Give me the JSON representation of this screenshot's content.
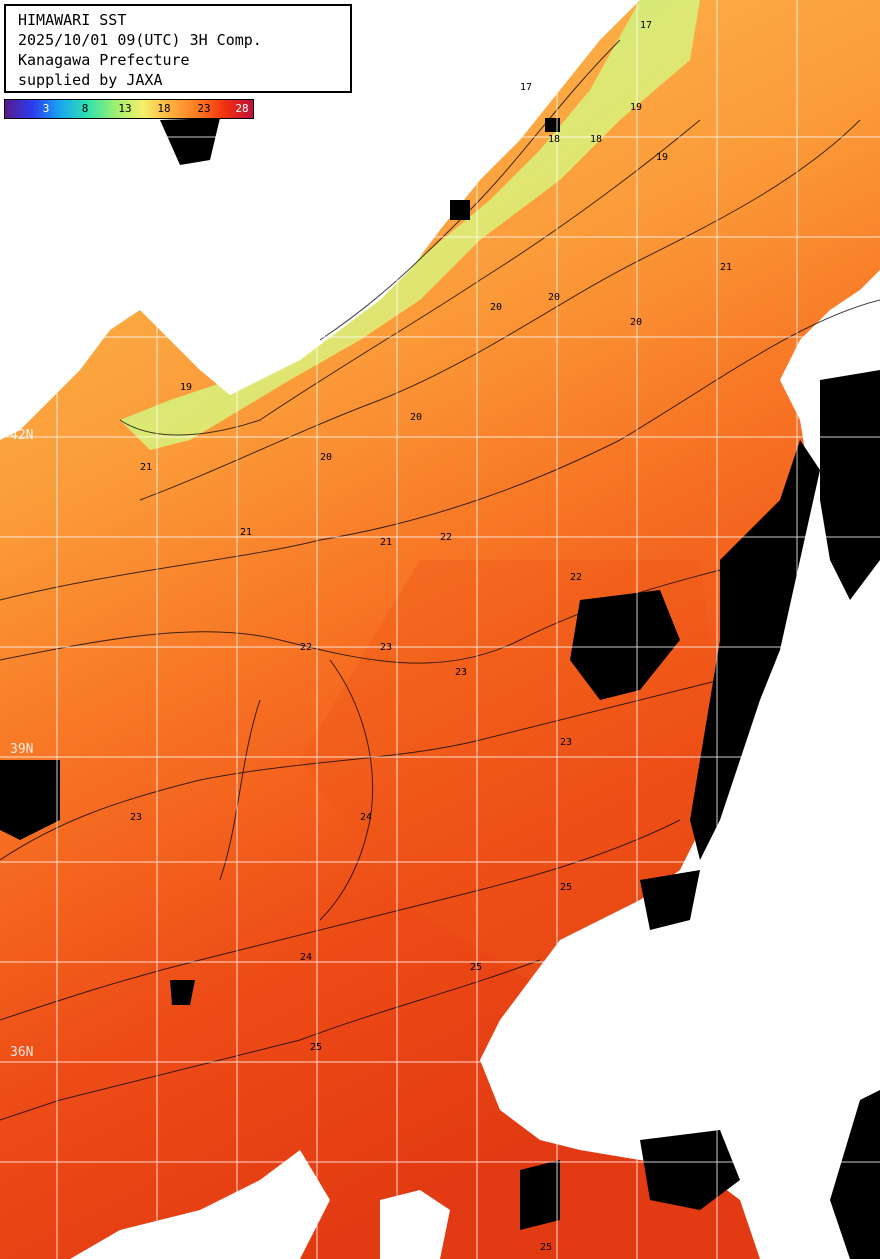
{
  "caption": {
    "line1": "HIMAWARI SST",
    "line2": "2025/10/01 09(UTC) 3H Comp.",
    "line3": "Kanagawa Prefecture",
    "line4": "supplied by JAXA"
  },
  "colorbar": {
    "ticks": [
      "3",
      "8",
      "13",
      "18",
      "23",
      "28"
    ],
    "stops": [
      "#5a1a8a",
      "#2a3cf0",
      "#1aa6f0",
      "#30e0b0",
      "#9af070",
      "#f6f06a",
      "#ffb040",
      "#ff7a20",
      "#f03010",
      "#c0103a"
    ]
  },
  "latitude_labels": [
    "42N",
    "39N",
    "36N"
  ],
  "contour_labels": [
    "17",
    "18",
    "19",
    "20",
    "21",
    "22",
    "23",
    "24",
    "25"
  ],
  "colors": {
    "cloud_or_missing": "#000000",
    "land": "#ffffff",
    "grid": "#ffffff",
    "sst_cool": "#bfe97c",
    "sst_warm": "#e23a12"
  }
}
